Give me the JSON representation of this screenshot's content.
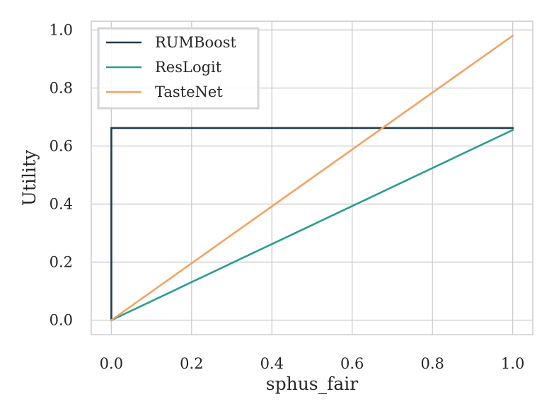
{
  "chart_data": {
    "type": "line",
    "title": "",
    "xlabel": "sphus_fair",
    "ylabel": "Utility",
    "xlim": [
      -0.05,
      1.05
    ],
    "ylim": [
      -0.05,
      1.03
    ],
    "xticks": [
      0.0,
      0.2,
      0.4,
      0.6,
      0.8,
      1.0
    ],
    "yticks": [
      0.0,
      0.2,
      0.4,
      0.6,
      0.8,
      1.0
    ],
    "xtick_labels": [
      "0.0",
      "0.2",
      "0.4",
      "0.6",
      "0.8",
      "1.0"
    ],
    "ytick_labels": [
      "0.0",
      "0.2",
      "0.4",
      "0.6",
      "0.8",
      "1.0"
    ],
    "grid": true,
    "legend_position": "top-left",
    "series": [
      {
        "name": "RUMBoost",
        "color": "#1f3d4c",
        "x": [
          0.0,
          0.0,
          1.0
        ],
        "y": [
          0.0,
          0.662,
          0.662
        ]
      },
      {
        "name": "ResLogit",
        "color": "#2a9d8f",
        "x": [
          0.0,
          1.0
        ],
        "y": [
          0.0,
          0.655
        ]
      },
      {
        "name": "TasteNet",
        "color": "#f4a261",
        "x": [
          0.0,
          1.0
        ],
        "y": [
          0.0,
          0.98
        ]
      }
    ]
  }
}
